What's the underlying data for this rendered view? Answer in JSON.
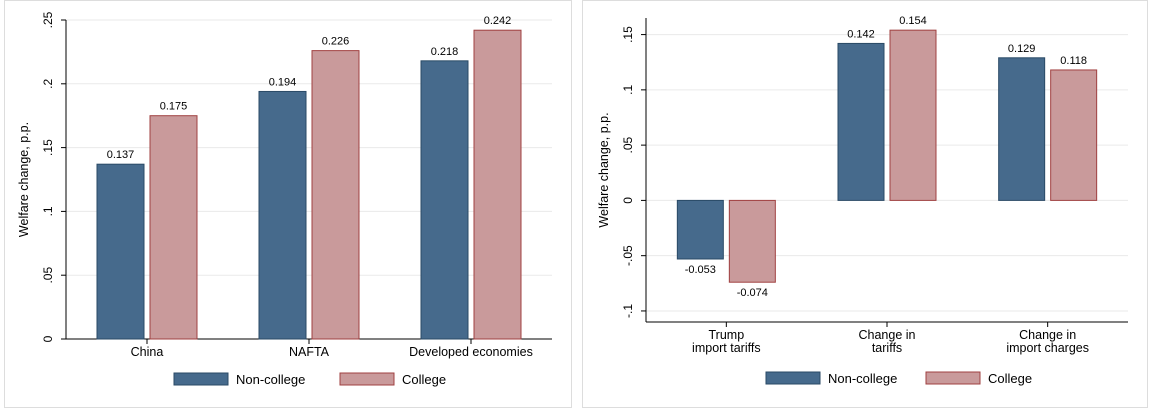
{
  "chart_data": [
    {
      "type": "bar",
      "ylabel": "Welfare change, p.p.",
      "xlabel": "",
      "categories": [
        "China",
        "NAFTA",
        "Developed economies"
      ],
      "series": [
        {
          "name": "Non-college",
          "values": [
            0.137,
            0.194,
            0.218
          ]
        },
        {
          "name": "College",
          "values": [
            0.175,
            0.226,
            0.242
          ]
        }
      ],
      "data_labels": [
        [
          "0.137",
          "0.194",
          "0.218"
        ],
        [
          "0.175",
          "0.226",
          "0.242"
        ]
      ],
      "ylim": [
        0,
        0.25
      ],
      "yticks": [
        0,
        0.05,
        0.1,
        0.15,
        0.2,
        0.25
      ],
      "ytick_labels": [
        "0",
        ".05",
        ".1",
        ".15",
        ".2",
        ".25"
      ],
      "grid": true,
      "legend_position": "bottom"
    },
    {
      "type": "bar",
      "ylabel": "Welfare change, p.p.",
      "xlabel": "",
      "categories": [
        [
          "Trump",
          "import tariffs"
        ],
        [
          "Change in",
          "tariffs"
        ],
        [
          "Change in",
          "import charges"
        ]
      ],
      "series": [
        {
          "name": "Non-college",
          "values": [
            -0.053,
            0.142,
            0.129
          ]
        },
        {
          "name": "College",
          "values": [
            -0.074,
            0.154,
            0.118
          ]
        }
      ],
      "data_labels": [
        [
          "-0.053",
          "0.142",
          "0.129"
        ],
        [
          "-0.074",
          "0.154",
          "0.118"
        ]
      ],
      "ylim": [
        -0.11,
        0.165
      ],
      "yticks": [
        -0.1,
        -0.05,
        0,
        0.05,
        0.1,
        0.15
      ],
      "ytick_labels": [
        "-.1",
        "-.05",
        "0",
        ".05",
        ".1",
        ".15"
      ],
      "grid": true,
      "legend_position": "bottom"
    }
  ],
  "colors": {
    "Non-college": "#466a8c",
    "College": "#c99a9b"
  }
}
